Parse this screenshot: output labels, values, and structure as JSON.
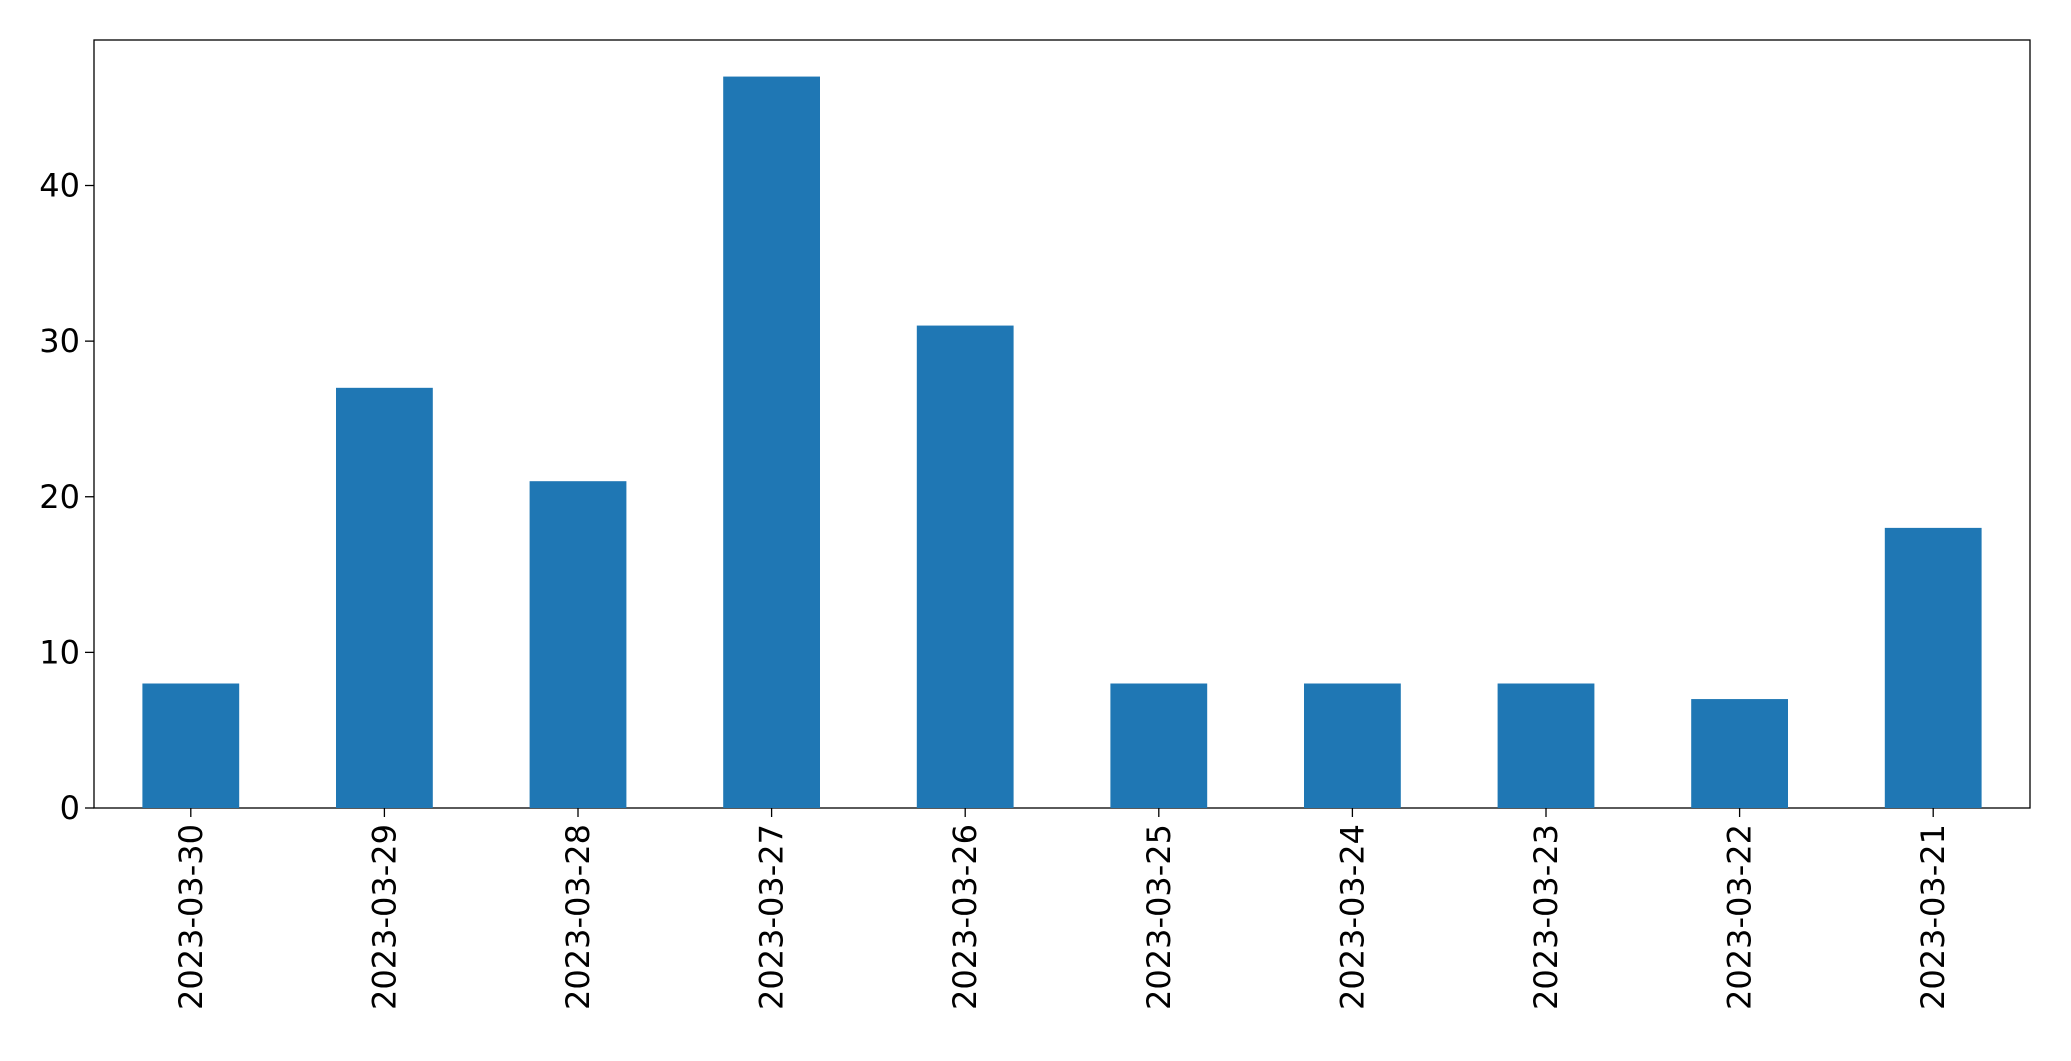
{
  "chart_data": {
    "type": "bar",
    "categories": [
      "2023-03-30",
      "2023-03-29",
      "2023-03-28",
      "2023-03-27",
      "2023-03-26",
      "2023-03-25",
      "2023-03-24",
      "2023-03-23",
      "2023-03-22",
      "2023-03-21"
    ],
    "values": [
      8,
      27,
      21,
      47,
      31,
      8,
      8,
      8,
      7,
      18
    ],
    "color": "#1f77b4",
    "ylim": [
      0,
      49.35
    ],
    "yticks": [
      0,
      10,
      20,
      30,
      40
    ],
    "grid": false
  }
}
